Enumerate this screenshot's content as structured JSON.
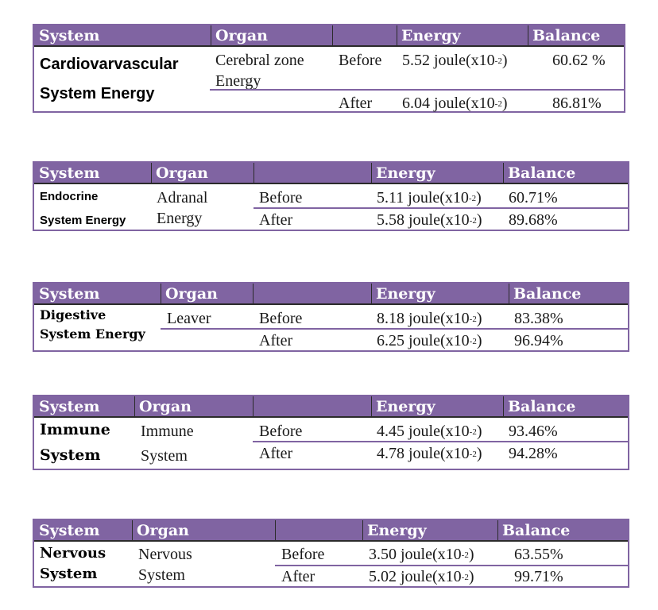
{
  "headers": {
    "system": "System",
    "organ": "Organ",
    "energy": "Energy",
    "balance": "Balance"
  },
  "energy_unit": {
    "unit": "joule(x10",
    "exponent": "-2",
    "close": ")"
  },
  "tables": [
    {
      "system": [
        "Cardiovarvascular",
        "System  Energy"
      ],
      "organ": [
        "Cerebral zone",
        "Energy"
      ],
      "rows": [
        {
          "phase": "Before",
          "energy": "5.52",
          "balance": "60.62 %"
        },
        {
          "phase": "After",
          "energy": "6.04",
          "balance": "86.81%"
        }
      ]
    },
    {
      "system": [
        "Endocrine",
        "System  Energy"
      ],
      "organ": [
        "Adranal",
        "Energy"
      ],
      "rows": [
        {
          "phase": "Before",
          "energy": "5.11",
          "balance": "60.71%"
        },
        {
          "phase": "After",
          "energy": "5.58",
          "balance": "89.68%"
        }
      ]
    },
    {
      "system": [
        "Digestive",
        "System Energy"
      ],
      "organ": [
        "Leaver"
      ],
      "rows": [
        {
          "phase": "Before",
          "energy": "8.18",
          "balance": "83.38%"
        },
        {
          "phase": "After",
          "energy": "6.25",
          "balance": "96.94%"
        }
      ]
    },
    {
      "system": [
        "Immune",
        "System"
      ],
      "organ": [
        "Immune",
        "System"
      ],
      "rows": [
        {
          "phase": "Before",
          "energy": "4.45",
          "balance": "93.46%"
        },
        {
          "phase": "After",
          "energy": "4.78",
          "balance": "94.28%"
        }
      ]
    },
    {
      "system": [
        "Nervous",
        "System"
      ],
      "organ": [
        "Nervous",
        "System"
      ],
      "rows": [
        {
          "phase": "Before",
          "energy": "3.50 ",
          "balance": "63.55%"
        },
        {
          "phase": "After",
          "energy": "5.02",
          "balance": "99.71%"
        }
      ]
    }
  ]
}
